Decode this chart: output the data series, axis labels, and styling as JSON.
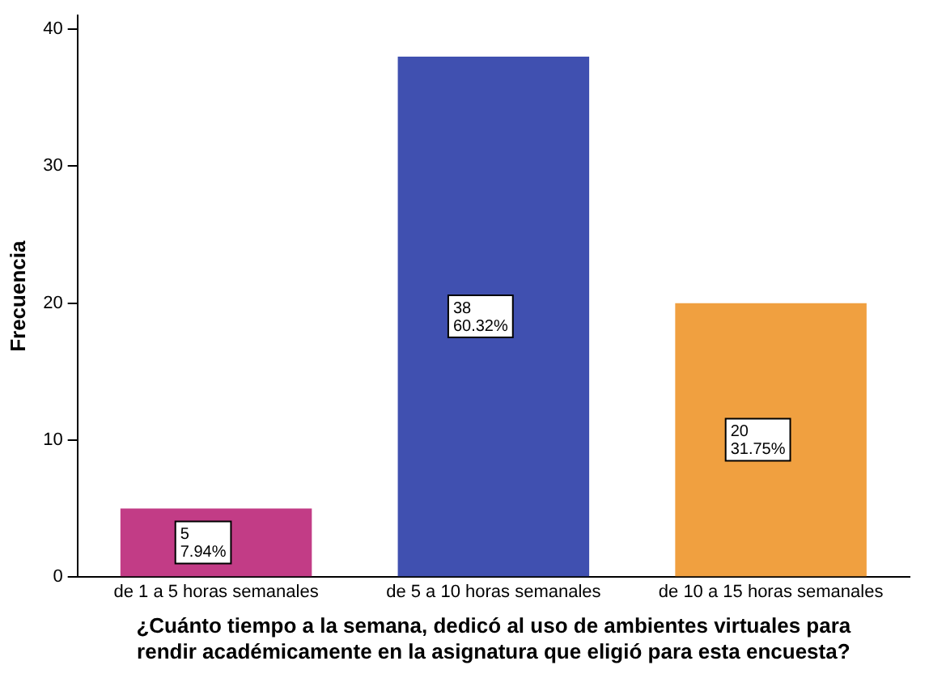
{
  "chart_data": {
    "type": "bar",
    "xlabel": "¿Cuánto tiempo a la semana, dedicó al uso de ambientes virtuales para rendir académicamente en la asignatura que eligió para esta encuesta?",
    "ylabel": "Frecuencia",
    "categories": [
      "de 1 a 5 horas semanales",
      "de 5 a 10 horas semanales",
      "de 10 a 15 horas semanales"
    ],
    "values": [
      5,
      38,
      20
    ],
    "colors": [
      "#c23c86",
      "#4050b0",
      "#f0a040"
    ],
    "value_labels": [
      "5\n7.94%",
      "38\n60.32%",
      "20\n31.75%"
    ],
    "ylim": [
      0,
      41
    ],
    "yticks": [
      0,
      10,
      20,
      30,
      40
    ],
    "grid": false,
    "legend": false
  }
}
